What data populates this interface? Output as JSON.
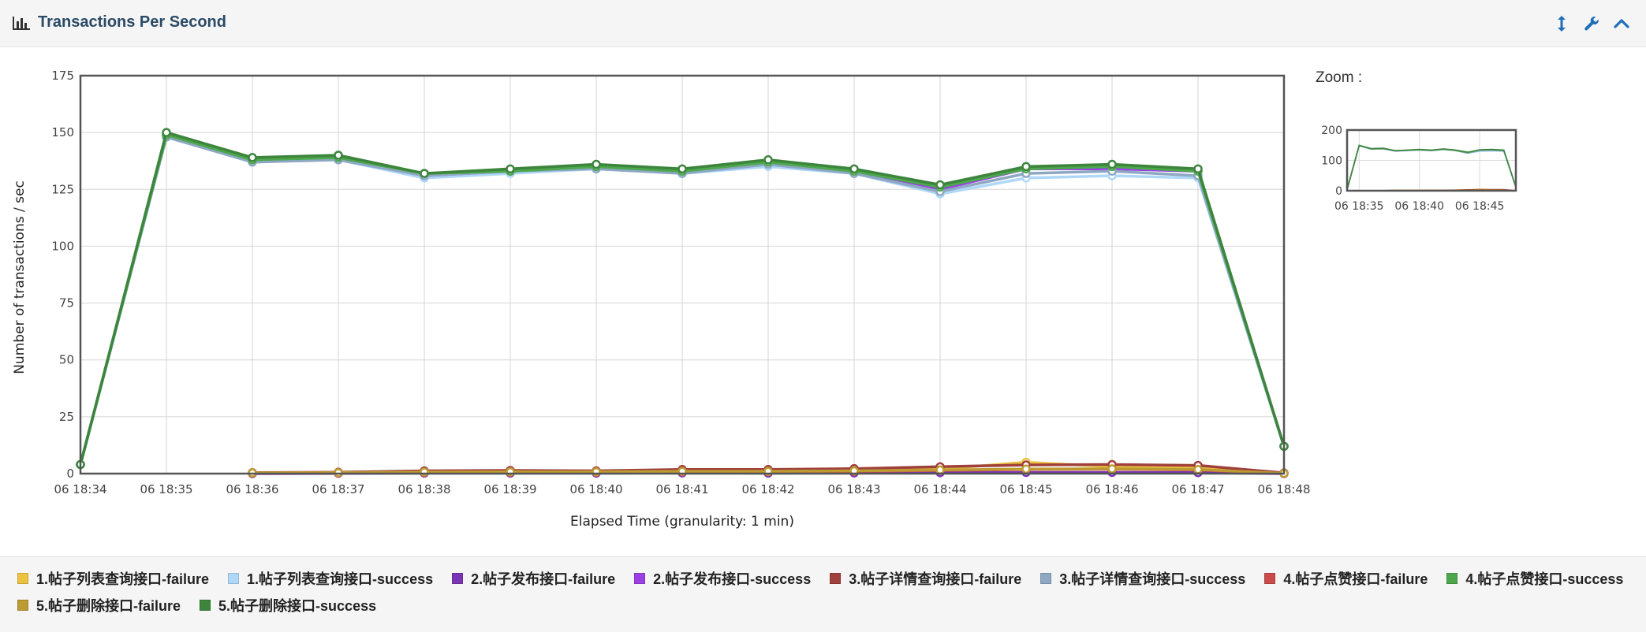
{
  "header": {
    "title": "Transactions Per Second",
    "title_icon": "bar-chart-icon",
    "tools": [
      "expand-vertical-icon",
      "wrench-icon",
      "chevron-up-icon"
    ],
    "accent_color": "#1e6fb8"
  },
  "zoom": {
    "label": "Zoom :",
    "yticks": [
      "0",
      "100",
      "200"
    ],
    "xticks": [
      "06 18:35",
      "06 18:40",
      "06 18:45"
    ]
  },
  "chart_data": {
    "type": "line",
    "title": "",
    "xlabel": "Elapsed Time (granularity: 1 min)",
    "ylabel": "Number of transactions / sec",
    "ylim": [
      0,
      175
    ],
    "yticks": [
      0,
      25,
      50,
      75,
      100,
      125,
      150,
      175
    ],
    "x": [
      "06 18:34",
      "06 18:35",
      "06 18:36",
      "06 18:37",
      "06 18:38",
      "06 18:39",
      "06 18:40",
      "06 18:41",
      "06 18:42",
      "06 18:43",
      "06 18:44",
      "06 18:45",
      "06 18:46",
      "06 18:47",
      "06 18:48"
    ],
    "grid": true,
    "legend_position": "bottom",
    "series": [
      {
        "name": "1.帖子列表查询接口-failure",
        "color": "#edc240",
        "values": [
          null,
          null,
          0.4,
          0.5,
          1.0,
          1.0,
          1.0,
          1.3,
          1.2,
          1.5,
          2.0,
          5.0,
          3.0,
          2.5,
          0.2
        ]
      },
      {
        "name": "1.帖子列表查询接口-success",
        "color": "#afd8f8",
        "values": [
          4,
          148,
          137,
          138,
          130,
          132,
          134,
          132,
          135,
          132,
          123,
          130,
          131,
          130,
          12
        ]
      },
      {
        "name": "2.帖子发布接口-failure",
        "color": "#7a35b5",
        "values": [
          null,
          null,
          0.0,
          0.1,
          0.2,
          0.2,
          0.2,
          0.3,
          0.2,
          0.3,
          0.4,
          0.5,
          0.5,
          0.4,
          0.0
        ]
      },
      {
        "name": "2.帖子发布接口-success",
        "color": "#9b40e5",
        "values": [
          4,
          149,
          138,
          139,
          131,
          133,
          135,
          133,
          137,
          133,
          125,
          134,
          134,
          133,
          12
        ]
      },
      {
        "name": "3.帖子详情查询接口-failure",
        "color": "#a0403c",
        "values": [
          null,
          null,
          0.4,
          0.6,
          1.2,
          1.4,
          1.2,
          1.8,
          1.8,
          2.2,
          3.0,
          3.8,
          4.0,
          3.6,
          0.3
        ]
      },
      {
        "name": "3.帖子详情查询接口-success",
        "color": "#8ea8c3",
        "values": [
          4,
          148,
          137,
          138,
          131,
          133,
          134,
          132,
          136,
          132,
          124,
          132,
          133,
          131,
          12
        ]
      },
      {
        "name": "4.帖子点赞接口-failure",
        "color": "#cb4b4b",
        "values": [
          null,
          null,
          0.2,
          0.3,
          0.5,
          0.6,
          0.6,
          0.8,
          0.8,
          1.0,
          1.4,
          1.8,
          1.9,
          1.6,
          0.1
        ]
      },
      {
        "name": "4.帖子点赞接口-success",
        "color": "#4da74d",
        "values": [
          4,
          149,
          138,
          139,
          132,
          133,
          135,
          133,
          137,
          133,
          126,
          134,
          135,
          133,
          12
        ]
      },
      {
        "name": "5.帖子删除接口-failure",
        "color": "#bd9b33",
        "values": [
          null,
          null,
          0.3,
          0.4,
          0.7,
          0.8,
          0.8,
          1.0,
          1.0,
          1.2,
          1.6,
          2.0,
          2.1,
          1.8,
          0.1
        ]
      },
      {
        "name": "5.帖子删除接口-success",
        "color": "#3d853d",
        "values": [
          4,
          150,
          139,
          140,
          132,
          134,
          136,
          134,
          138,
          134,
          127,
          135,
          136,
          134,
          12
        ]
      }
    ]
  }
}
